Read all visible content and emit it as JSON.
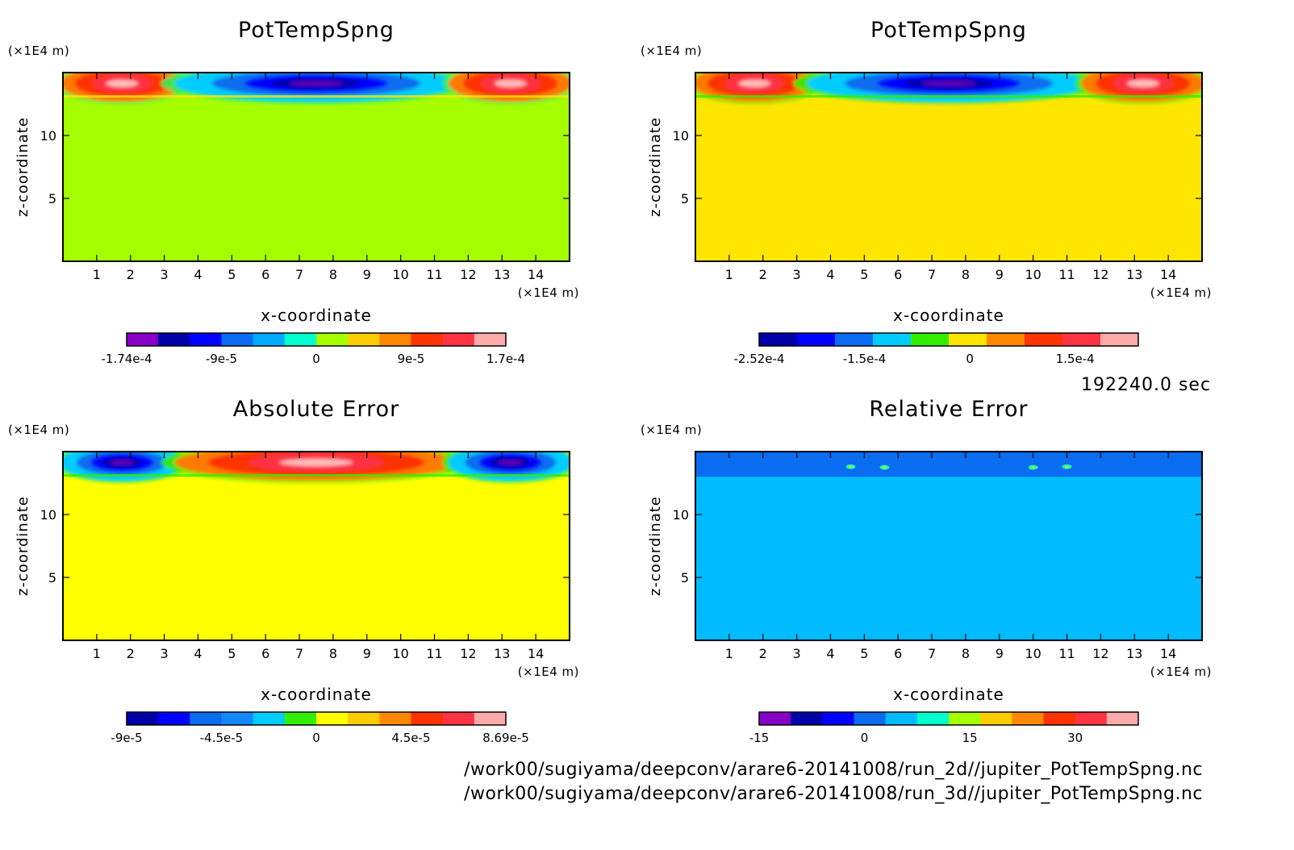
{
  "time_label": "192240.0 sec",
  "files": [
    "/work00/sugiyama/deepconv/arare6-20141008/run_2d//jupiter_PotTempSpng.nc",
    "/work00/sugiyama/deepconv/arare6-20141008/run_3d//jupiter_PotTempSpng.nc"
  ],
  "chart_data": [
    {
      "type": "heatmap",
      "title": "PotTempSpng",
      "xlabel": "x-coordinate",
      "ylabel": "z-coordinate",
      "x_unit": "(×1E4 m)",
      "y_unit": "(×1E4 m)",
      "xlim": [
        0,
        15
      ],
      "ylim": [
        0,
        15
      ],
      "xticks": [
        1,
        2,
        3,
        4,
        5,
        6,
        7,
        8,
        9,
        10,
        11,
        12,
        13,
        14
      ],
      "yticks": [
        5,
        10
      ],
      "background_color": "#a6ff00",
      "colorbar": {
        "colors": [
          "#8800c8",
          "#0000a8",
          "#0000ff",
          "#0a6cf0",
          "#00aaff",
          "#00ffcc",
          "#a6ff00",
          "#ffcc00",
          "#ff8800",
          "#ff3300",
          "#ff3344",
          "#ffaaaa"
        ],
        "tick_labels": [
          "-1.74e-4",
          "-9e-5",
          "0",
          "9e-5",
          "1.7e-4"
        ]
      },
      "features": [
        {
          "value_class": "positive",
          "x": [
            0,
            3.5
          ],
          "z": [
            13.2,
            14.9
          ]
        },
        {
          "value_class": "negative",
          "x": [
            3.5,
            11.5
          ],
          "z": [
            13.2,
            14.9
          ]
        },
        {
          "value_class": "positive",
          "x": [
            11.5,
            15
          ],
          "z": [
            13.2,
            14.9
          ]
        }
      ]
    },
    {
      "type": "heatmap",
      "title": "PotTempSpng",
      "xlabel": "x-coordinate",
      "ylabel": "z-coordinate",
      "x_unit": "(×1E4 m)",
      "y_unit": "(×1E4 m)",
      "xlim": [
        0,
        15
      ],
      "ylim": [
        0,
        15
      ],
      "xticks": [
        1,
        2,
        3,
        4,
        5,
        6,
        7,
        8,
        9,
        10,
        11,
        12,
        13,
        14
      ],
      "yticks": [
        5,
        10
      ],
      "background_color": "#ffe600",
      "colorbar": {
        "colors": [
          "#0000a8",
          "#0000ff",
          "#0a6cf0",
          "#00ccff",
          "#33ee00",
          "#ffe600",
          "#ff8800",
          "#ff3300",
          "#ff3344",
          "#ffaaaa"
        ],
        "tick_labels": [
          "-2.52e-4",
          "-1.5e-4",
          "0",
          "1.5e-4"
        ]
      },
      "features": [
        {
          "value_class": "positive",
          "x": [
            0,
            3.5
          ],
          "z": [
            13.2,
            14.9
          ]
        },
        {
          "value_class": "negative",
          "x": [
            3.5,
            11.5
          ],
          "z": [
            13.2,
            14.9
          ]
        },
        {
          "value_class": "positive",
          "x": [
            11.5,
            15
          ],
          "z": [
            13.2,
            14.9
          ]
        }
      ]
    },
    {
      "type": "heatmap",
      "title": "Absolute Error",
      "xlabel": "x-coordinate",
      "ylabel": "z-coordinate",
      "x_unit": "(×1E4 m)",
      "y_unit": "(×1E4 m)",
      "xlim": [
        0,
        15
      ],
      "ylim": [
        0,
        15
      ],
      "xticks": [
        1,
        2,
        3,
        4,
        5,
        6,
        7,
        8,
        9,
        10,
        11,
        12,
        13,
        14
      ],
      "yticks": [
        5,
        10
      ],
      "background_color": "#ffff00",
      "colorbar": {
        "colors": [
          "#0000a8",
          "#0000ff",
          "#0a6cf0",
          "#1188ff",
          "#00ccff",
          "#33ee00",
          "#ffff00",
          "#ffcc00",
          "#ff8800",
          "#ff3300",
          "#ff3344",
          "#ffaaaa"
        ],
        "tick_labels": [
          "-9e-5",
          "-4.5e-5",
          "0",
          "4.5e-5",
          "8.69e-5"
        ]
      },
      "features": [
        {
          "value_class": "negative",
          "x": [
            0,
            3.5
          ],
          "z": [
            13.2,
            14.9
          ]
        },
        {
          "value_class": "positive",
          "x": [
            3.5,
            11.5
          ],
          "z": [
            13.2,
            14.9
          ]
        },
        {
          "value_class": "negative",
          "x": [
            11.5,
            15
          ],
          "z": [
            13.2,
            14.9
          ]
        }
      ]
    },
    {
      "type": "heatmap",
      "title": "Relative Error",
      "xlabel": "x-coordinate",
      "ylabel": "z-coordinate",
      "x_unit": "(×1E4 m)",
      "y_unit": "(×1E4 m)",
      "xlim": [
        0,
        15
      ],
      "ylim": [
        0,
        15
      ],
      "xticks": [
        1,
        2,
        3,
        4,
        5,
        6,
        7,
        8,
        9,
        10,
        11,
        12,
        13,
        14
      ],
      "yticks": [
        5,
        10
      ],
      "background_color": "#00bbff",
      "colorbar": {
        "colors": [
          "#8800c8",
          "#0000a8",
          "#0000ff",
          "#0a6cf0",
          "#00bbff",
          "#00ffcc",
          "#a6ff00",
          "#ffcc00",
          "#ff8800",
          "#ff3300",
          "#ff3344",
          "#ffaaaa"
        ],
        "tick_labels": [
          "-15",
          "0",
          "15",
          "30"
        ]
      },
      "features": [
        {
          "value_class": "small-negative",
          "x": [
            0,
            15
          ],
          "z": [
            13.0,
            14.9
          ]
        }
      ]
    }
  ]
}
